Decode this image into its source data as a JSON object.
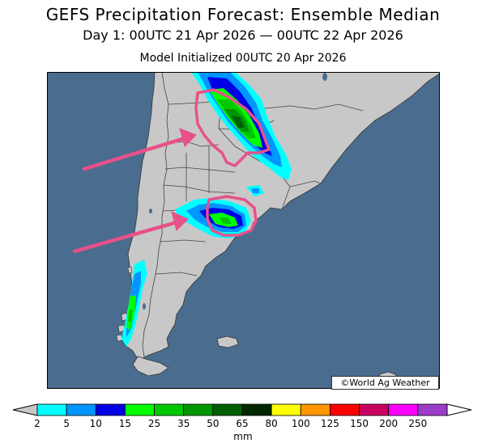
{
  "header": {
    "title": "GEFS Precipitation Forecast: Ensemble Median",
    "valid_period": "Day 1: 00UTC 21 Apr 2026 — 00UTC 22 Apr 2026",
    "init": "Model Initialized 00UTC 20 Apr 2026"
  },
  "credit": "©World Ag Weather",
  "legend": {
    "unit": "mm",
    "ticks": [
      "2",
      "5",
      "10",
      "15",
      "25",
      "35",
      "50",
      "65",
      "80",
      "100",
      "125",
      "150",
      "200",
      "250"
    ],
    "colors": [
      "#00ffff",
      "#0096ff",
      "#0000e6",
      "#00ff00",
      "#00c800",
      "#009600",
      "#005f00",
      "#002800",
      "#ffff00",
      "#ff9600",
      "#ff0000",
      "#c8005f",
      "#ff00ff",
      "#9b3cc8"
    ],
    "under_color": "#c8c8c8",
    "over_color": "#ffffff"
  },
  "map_colors": {
    "ocean": "#4a6c8e",
    "land": "#c8c8c8",
    "borders": "#444444",
    "highlight": "#e8518a"
  }
}
